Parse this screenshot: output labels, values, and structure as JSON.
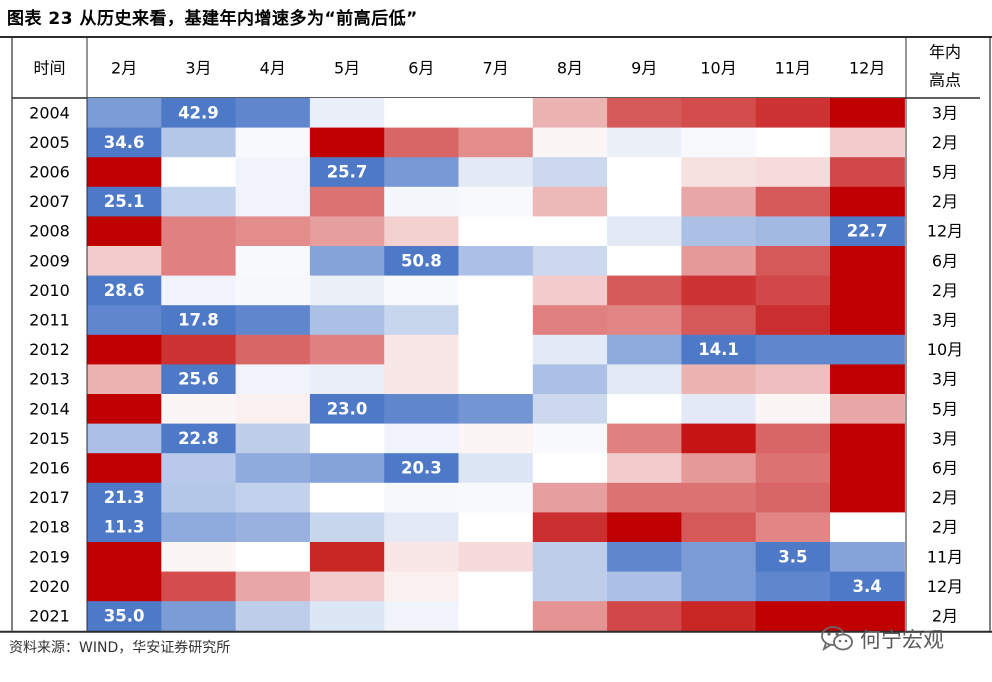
{
  "title": "图表 23 从历史来看，基建年内增速多为“前高后低”",
  "source": "资料来源：WIND，华安证券研究所",
  "watermark": {
    "icon": "wechat-icon",
    "text": "何宁宏观"
  },
  "colors": {
    "high": "#c00000",
    "mid": "#ffffff",
    "low": "#4472c4",
    "text": "#000000",
    "highlight_text": "#ffffff"
  },
  "chart_data": {
    "type": "heatmap",
    "title": "基建年内增速多为“前高后低”",
    "corner_label": "时间",
    "peak_header": [
      "年内",
      "高点"
    ],
    "columns": [
      "2月",
      "3月",
      "4月",
      "5月",
      "6月",
      "7月",
      "8月",
      "9月",
      "10月",
      "11月",
      "12月"
    ],
    "rows": [
      {
        "year": "2004",
        "peak": "3月",
        "label": {
          "col": 1,
          "text": "42.9"
        },
        "shade": [
          -0.7,
          -0.95,
          -0.85,
          -0.12,
          0,
          0,
          0.3,
          0.65,
          0.7,
          0.8,
          1
        ]
      },
      {
        "year": "2005",
        "peak": "2月",
        "label": {
          "col": 0,
          "text": "34.6"
        },
        "shade": [
          -0.95,
          -0.4,
          -0.04,
          1,
          0.6,
          0.45,
          0.04,
          -0.1,
          -0.04,
          0,
          0.2
        ]
      },
      {
        "year": "2006",
        "peak": "5月",
        "label": {
          "col": 3,
          "text": "25.7"
        },
        "shade": [
          1,
          0,
          -0.08,
          -0.95,
          -0.72,
          -0.15,
          -0.28,
          0,
          0.12,
          0.14,
          0.72
        ]
      },
      {
        "year": "2007",
        "peak": "2月",
        "label": {
          "col": 0,
          "text": "25.1"
        },
        "shade": [
          -0.95,
          -0.32,
          -0.08,
          0.55,
          -0.06,
          -0.04,
          0.28,
          0,
          0.35,
          0.65,
          1
        ]
      },
      {
        "year": "2008",
        "peak": "12月",
        "label": {
          "col": 10,
          "text": "22.7"
        },
        "shade": [
          1,
          0.5,
          0.45,
          0.38,
          0.18,
          0,
          0,
          -0.15,
          -0.45,
          -0.5,
          -0.95
        ]
      },
      {
        "year": "2009",
        "peak": "6月",
        "label": {
          "col": 4,
          "text": "50.8"
        },
        "shade": [
          0.2,
          0.5,
          -0.04,
          -0.65,
          -0.95,
          -0.45,
          -0.28,
          0,
          0.4,
          0.65,
          1
        ]
      },
      {
        "year": "2010",
        "peak": "2月",
        "label": {
          "col": 0,
          "text": "28.6"
        },
        "shade": [
          -0.95,
          -0.08,
          -0.05,
          -0.1,
          -0.04,
          0,
          0.2,
          0.65,
          0.8,
          0.72,
          1
        ]
      },
      {
        "year": "2011",
        "peak": "3月",
        "label": {
          "col": 1,
          "text": "17.8"
        },
        "shade": [
          -0.85,
          -0.95,
          -0.85,
          -0.45,
          -0.3,
          0,
          0.5,
          0.48,
          0.65,
          0.82,
          1
        ]
      },
      {
        "year": "2012",
        "peak": "10月",
        "label": {
          "col": 8,
          "text": "14.1"
        },
        "shade": [
          1,
          0.8,
          0.6,
          0.5,
          0.1,
          0,
          -0.15,
          -0.6,
          -0.95,
          -0.85,
          -0.85
        ]
      },
      {
        "year": "2013",
        "peak": "3月",
        "label": {
          "col": 1,
          "text": "25.6"
        },
        "shade": [
          0.3,
          -0.95,
          -0.08,
          -0.12,
          0.1,
          0,
          -0.45,
          -0.15,
          0.3,
          0.25,
          1
        ]
      },
      {
        "year": "2014",
        "peak": "5月",
        "label": {
          "col": 3,
          "text": "23.0"
        },
        "shade": [
          1,
          0.04,
          0.06,
          -0.95,
          -0.85,
          -0.75,
          -0.28,
          0,
          -0.15,
          0.04,
          0.35
        ]
      },
      {
        "year": "2015",
        "peak": "3月",
        "label": {
          "col": 1,
          "text": "22.8"
        },
        "shade": [
          -0.45,
          -0.95,
          -0.35,
          0,
          -0.08,
          0.04,
          -0.04,
          0.5,
          0.92,
          0.6,
          1
        ]
      },
      {
        "year": "2016",
        "peak": "6月",
        "label": {
          "col": 4,
          "text": "20.3"
        },
        "shade": [
          1,
          -0.38,
          -0.6,
          -0.65,
          -0.95,
          -0.18,
          0,
          0.2,
          0.4,
          0.55,
          1
        ]
      },
      {
        "year": "2017",
        "peak": "2月",
        "label": {
          "col": 0,
          "text": "21.3"
        },
        "shade": [
          -0.95,
          -0.4,
          -0.32,
          0,
          -0.05,
          -0.04,
          0.38,
          0.55,
          0.55,
          0.6,
          1
        ]
      },
      {
        "year": "2018",
        "peak": "2月",
        "label": {
          "col": 0,
          "text": "11.3"
        },
        "shade": [
          -0.95,
          -0.6,
          -0.55,
          -0.3,
          -0.15,
          0,
          0.82,
          1,
          0.65,
          0.48,
          0
        ]
      },
      {
        "year": "2019",
        "peak": "11月",
        "label": {
          "col": 9,
          "text": "3.5"
        },
        "shade": [
          1,
          0.04,
          0,
          0.85,
          0.1,
          0.15,
          -0.35,
          -0.85,
          -0.7,
          -0.95,
          -0.65
        ]
      },
      {
        "year": "2020",
        "peak": "12月",
        "label": {
          "col": 10,
          "text": "3.4"
        },
        "shade": [
          1,
          0.7,
          0.35,
          0.2,
          0.06,
          0,
          -0.35,
          -0.45,
          -0.7,
          -0.85,
          -0.95
        ]
      },
      {
        "year": "2021",
        "peak": "2月",
        "label": {
          "col": 0,
          "text": "35.0"
        },
        "shade": [
          -0.95,
          -0.7,
          -0.35,
          -0.18,
          -0.08,
          0,
          0.42,
          0.72,
          0.85,
          1,
          1
        ]
      }
    ]
  }
}
